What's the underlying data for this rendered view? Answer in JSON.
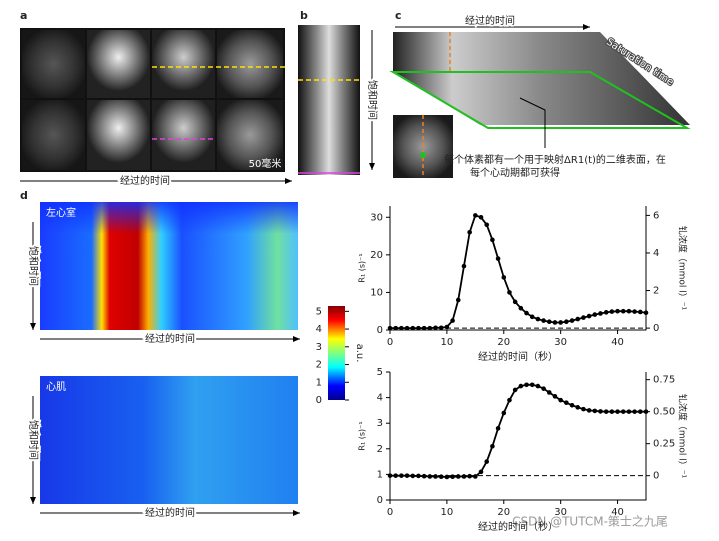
{
  "panels": {
    "a": {
      "label": "a",
      "scale_bar": "50毫米",
      "x_label": "经过的时间"
    },
    "b": {
      "label": "b",
      "y_label": "饱和时间"
    },
    "c": {
      "label": "c",
      "x_label": "经过的时间",
      "y_label": "Saturation time",
      "annotation": [
        "每个体素都有一个用于映射ΔR1(t)的二维表面，在",
        "每个心动期都可获得"
      ]
    },
    "d": {
      "label": "d",
      "heatmaps": [
        {
          "title": "左心室",
          "y_label": "饱和时间",
          "x_label": "经过的时间"
        },
        {
          "title": "心肌",
          "y_label": "饱和时间",
          "x_label": "经过的时间"
        }
      ],
      "colorbar": {
        "label": "a.u.",
        "lim": [
          0,
          5.3
        ],
        "ticks": [
          0,
          1,
          2,
          3,
          4,
          5
        ]
      }
    }
  },
  "watermark": "CSDN @TUTCM-策士之九尾",
  "chart_data": [
    {
      "type": "line",
      "x_label": "经过的时间（秒）",
      "y_label": "R₁ (s)⁻¹",
      "y2_label": "钆浓度（mmol l）⁻¹",
      "x": [
        0,
        1,
        2,
        3,
        4,
        5,
        6,
        7,
        8,
        9,
        10,
        11,
        12,
        13,
        14,
        15,
        16,
        17,
        18,
        19,
        20,
        21,
        22,
        23,
        24,
        25,
        26,
        27,
        28,
        29,
        30,
        31,
        32,
        33,
        34,
        35,
        36,
        37,
        38,
        39,
        40,
        41,
        42,
        43,
        44,
        45
      ],
      "series": [
        {
          "color": "#000000",
          "values": [
            0.5,
            0.5,
            0.5,
            0.5,
            0.5,
            0.5,
            0.5,
            0.5,
            0.6,
            0.6,
            0.8,
            2.5,
            8,
            17,
            26,
            30.5,
            30,
            28,
            24,
            19,
            14,
            10,
            7.5,
            5.8,
            4.5,
            3.5,
            2.9,
            2.5,
            2.2,
            2,
            2,
            2.2,
            2.5,
            2.9,
            3.3,
            3.7,
            4.1,
            4.4,
            4.7,
            4.9,
            5,
            5,
            5,
            4.9,
            4.8,
            4.6
          ]
        }
      ],
      "reference_line": 0.5,
      "xlim": [
        0,
        45
      ],
      "xticks": [
        0,
        10,
        20,
        30,
        40
      ],
      "ylim": [
        0,
        33
      ],
      "yticks": [
        0,
        10,
        20,
        30
      ],
      "y2lim": [
        -0.1,
        6.5
      ],
      "y2ticks": [
        0,
        2,
        4,
        6
      ]
    },
    {
      "type": "line",
      "x_label": "经过的时间（秒）",
      "y_label": "R₁ (s)⁻¹",
      "y2_label": "钆浓度（mmol l）⁻¹",
      "x": [
        0,
        1,
        2,
        3,
        4,
        5,
        6,
        7,
        8,
        9,
        10,
        11,
        12,
        13,
        14,
        15,
        16,
        17,
        18,
        19,
        20,
        21,
        22,
        23,
        24,
        25,
        26,
        27,
        28,
        29,
        30,
        31,
        32,
        33,
        34,
        35,
        36,
        37,
        38,
        39,
        40,
        41,
        42,
        43,
        44,
        45
      ],
      "series": [
        {
          "color": "#000000",
          "values": [
            0.95,
            0.95,
            0.95,
            0.95,
            0.94,
            0.94,
            0.93,
            0.92,
            0.92,
            0.91,
            0.9,
            0.91,
            0.92,
            0.92,
            0.93,
            0.92,
            1.1,
            1.5,
            2.1,
            2.8,
            3.4,
            3.9,
            4.3,
            4.45,
            4.5,
            4.5,
            4.45,
            4.35,
            4.2,
            4.05,
            3.9,
            3.8,
            3.7,
            3.62,
            3.55,
            3.5,
            3.48,
            3.46,
            3.45,
            3.45,
            3.45,
            3.45,
            3.45,
            3.45,
            3.45,
            3.45
          ]
        }
      ],
      "reference_line": 0.95,
      "xlim": [
        0,
        45
      ],
      "xticks": [
        0,
        10,
        20,
        30,
        40
      ],
      "ylim": [
        0,
        5
      ],
      "yticks": [
        0,
        1,
        2,
        3,
        4,
        5
      ],
      "y2lim": [
        -0.19,
        0.81
      ],
      "y2ticks": [
        0,
        0.25,
        {
          "value": 0.5,
          "label": "0.50"
        },
        0.75
      ]
    }
  ]
}
